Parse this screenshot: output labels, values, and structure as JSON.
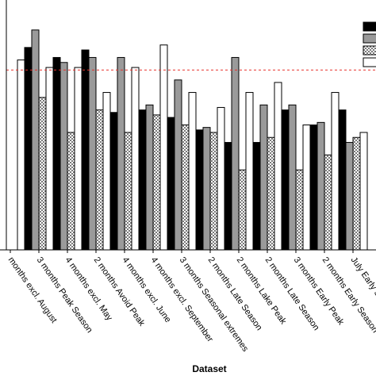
{
  "chart_data": {
    "type": "bar",
    "xlabel": "Dataset",
    "ylim": [
      0,
      1
    ],
    "reference_line": {
      "value": 0.72,
      "color": "#e8302c",
      "style": "dashed"
    },
    "legend_position": "top-right",
    "grid": false,
    "categories": [
      "months excl. August",
      "3 months Peak Season",
      "4 months excl. May",
      "2 months Avoid Peak",
      "4 months excl. June",
      "4 months excl. September",
      "3 months Seasonal extremes",
      "2 months Late Season",
      "2 months Lake Peak",
      "2 months Late Season",
      "3 months Early Peak",
      "2 months Early Season",
      "July Early Season"
    ],
    "series": [
      {
        "color": "#000000",
        "pattern": "solid",
        "values": [
          null,
          0.81,
          0.77,
          0.8,
          0.55,
          0.56,
          0.53,
          0.48,
          0.43,
          0.43,
          0.56,
          0.5,
          0.56
        ]
      },
      {
        "color": "#9a9a9a",
        "pattern": "solid",
        "values": [
          null,
          0.88,
          0.75,
          0.77,
          0.77,
          0.58,
          0.68,
          0.49,
          0.77,
          0.58,
          0.58,
          0.51,
          0.43
        ]
      },
      {
        "color": "#d3d3d3",
        "pattern": "checker",
        "values": [
          null,
          0.61,
          0.47,
          0.56,
          0.47,
          0.54,
          0.5,
          0.47,
          0.32,
          0.45,
          0.32,
          0.38,
          0.45
        ]
      },
      {
        "color": "#ffffff",
        "pattern": "solid",
        "values": [
          0.76,
          0.73,
          0.73,
          0.63,
          0.73,
          0.82,
          0.63,
          0.57,
          0.63,
          0.67,
          0.5,
          0.63,
          0.47
        ]
      }
    ]
  }
}
